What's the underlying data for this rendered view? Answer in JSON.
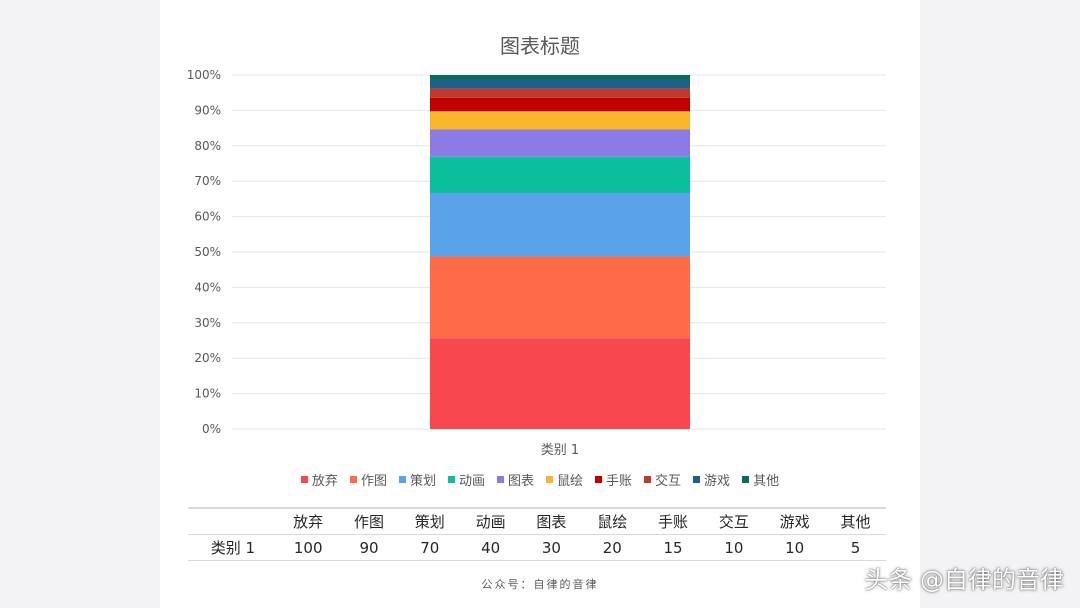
{
  "chart_data": {
    "type": "bar",
    "stacked": "percent",
    "title": "图表标题",
    "categories": [
      "类别 1"
    ],
    "series": [
      {
        "name": "放弃",
        "values": [
          100
        ],
        "color": "#f8474e"
      },
      {
        "name": "作图",
        "values": [
          90
        ],
        "color": "#ff6b47"
      },
      {
        "name": "策划",
        "values": [
          70
        ],
        "color": "#5ba3e8"
      },
      {
        "name": "动画",
        "values": [
          40
        ],
        "color": "#0abf9a"
      },
      {
        "name": "图表",
        "values": [
          30
        ],
        "color": "#8c7ae6"
      },
      {
        "name": "鼠绘",
        "values": [
          20
        ],
        "color": "#f8b62a"
      },
      {
        "name": "手账",
        "values": [
          15
        ],
        "color": "#c00000"
      },
      {
        "name": "交互",
        "values": [
          10
        ],
        "color": "#c0392b"
      },
      {
        "name": "游戏",
        "values": [
          10
        ],
        "color": "#1f5f8b"
      },
      {
        "name": "其他",
        "values": [
          5
        ],
        "color": "#0a6b5c"
      }
    ],
    "y_ticks": [
      "0%",
      "10%",
      "20%",
      "30%",
      "40%",
      "50%",
      "60%",
      "70%",
      "80%",
      "90%",
      "100%"
    ],
    "ylim": [
      0,
      100
    ],
    "grid": true,
    "legend": "bottom"
  },
  "table": {
    "row_label": "类别 1"
  },
  "footer": "公众号：自律的音律",
  "watermark": "头条 @自律的音律"
}
